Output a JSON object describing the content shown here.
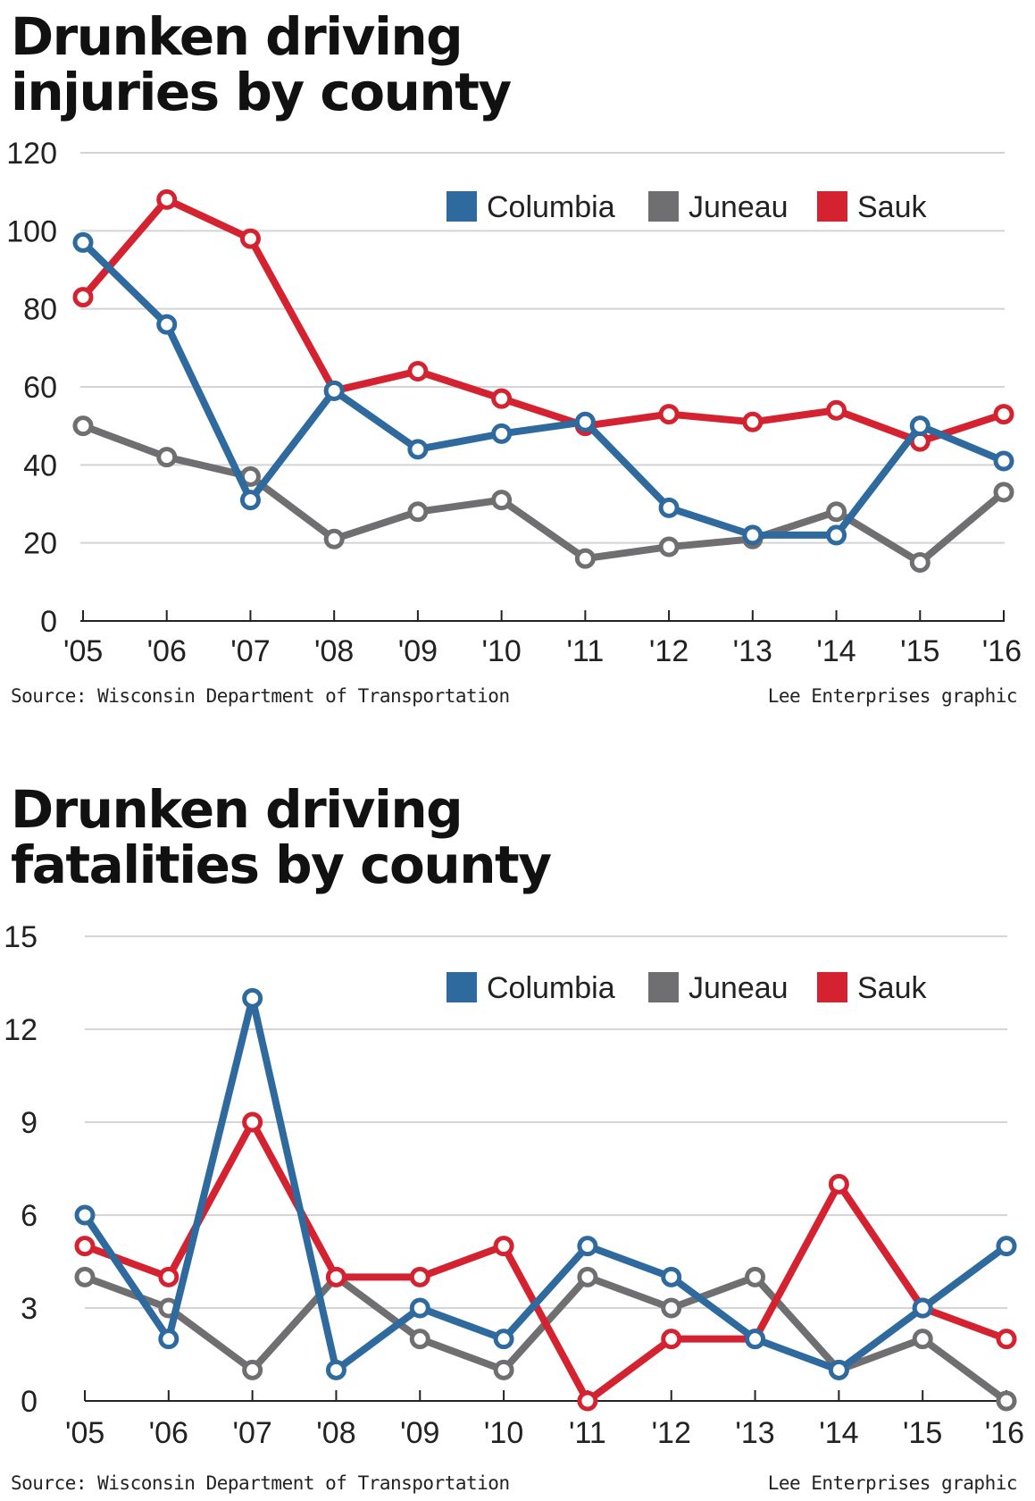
{
  "colors": {
    "Columbia": "#2f6a9e",
    "Juneau": "#6f6f71",
    "Sauk": "#d42230",
    "gridline": "#d4d4d4",
    "axis": "#222222"
  },
  "charts": [
    {
      "title_line1": "Drunken driving",
      "title_line2": "injuries by county",
      "source": "Source: Wisconsin Department of Transportation",
      "credit": "Lee Enterprises graphic"
    },
    {
      "title_line1": "Drunken driving",
      "title_line2": "fatalities by county",
      "source": "Source: Wisconsin Department of Transportation",
      "credit": "Lee Enterprises graphic"
    }
  ],
  "chart_data": [
    {
      "type": "line",
      "title": "Drunken driving injuries by county",
      "categories": [
        "'05",
        "'06",
        "'07",
        "'08",
        "'09",
        "'10",
        "'11",
        "'12",
        "'13",
        "'14",
        "'15",
        "'16"
      ],
      "ylim": [
        0,
        120
      ],
      "yticks": [
        0,
        20,
        40,
        60,
        80,
        100,
        120
      ],
      "grid": true,
      "legend": "top-right",
      "series": [
        {
          "name": "Columbia",
          "values": [
            97,
            76,
            31,
            59,
            44,
            48,
            51,
            29,
            22,
            22,
            50,
            41
          ]
        },
        {
          "name": "Juneau",
          "values": [
            50,
            42,
            37,
            21,
            28,
            31,
            16,
            19,
            21,
            28,
            15,
            33
          ]
        },
        {
          "name": "Sauk",
          "values": [
            83,
            108,
            98,
            59,
            64,
            57,
            50,
            53,
            51,
            54,
            46,
            53
          ]
        }
      ]
    },
    {
      "type": "line",
      "title": "Drunken driving fatalities by county",
      "categories": [
        "'05",
        "'06",
        "'07",
        "'08",
        "'09",
        "'10",
        "'11",
        "'12",
        "'13",
        "'14",
        "'15",
        "'16"
      ],
      "ylim": [
        0,
        15
      ],
      "yticks": [
        0,
        3,
        6,
        9,
        12,
        15
      ],
      "grid": true,
      "legend": "top-right",
      "series": [
        {
          "name": "Columbia",
          "values": [
            6,
            2,
            13,
            1,
            3,
            2,
            5,
            4,
            2,
            1,
            3,
            5
          ]
        },
        {
          "name": "Juneau",
          "values": [
            4,
            3,
            1,
            4,
            2,
            1,
            4,
            3,
            4,
            1,
            2,
            0
          ]
        },
        {
          "name": "Sauk",
          "values": [
            5,
            4,
            9,
            4,
            4,
            5,
            0,
            2,
            2,
            7,
            3,
            2
          ]
        }
      ]
    }
  ]
}
